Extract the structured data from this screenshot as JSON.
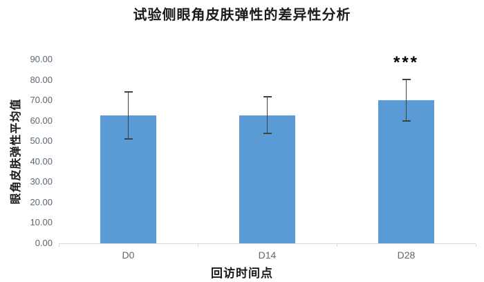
{
  "chart_data": {
    "type": "bar",
    "title": "试验侧眼角皮肤弹性的差异性分析",
    "xlabel": "回访时间点",
    "ylabel": "眼角皮肤弹性平均值",
    "categories": [
      "D0",
      "D14",
      "D28"
    ],
    "values": [
      62.6,
      62.7,
      70.1
    ],
    "error_bars": [
      11.7,
      9.2,
      10.4
    ],
    "annotations": [
      {
        "category": "D28",
        "text": "***"
      }
    ],
    "ylim": [
      0,
      90
    ],
    "ytick_step": 10,
    "ytick_decimals": 2,
    "grid": false,
    "legend": false,
    "colors": {
      "bar": "#5B9BD5",
      "error_bar": "#404040",
      "axis_line": "#D9D9D9",
      "tick_label": "#596673",
      "text": "#1a1a1a"
    }
  }
}
